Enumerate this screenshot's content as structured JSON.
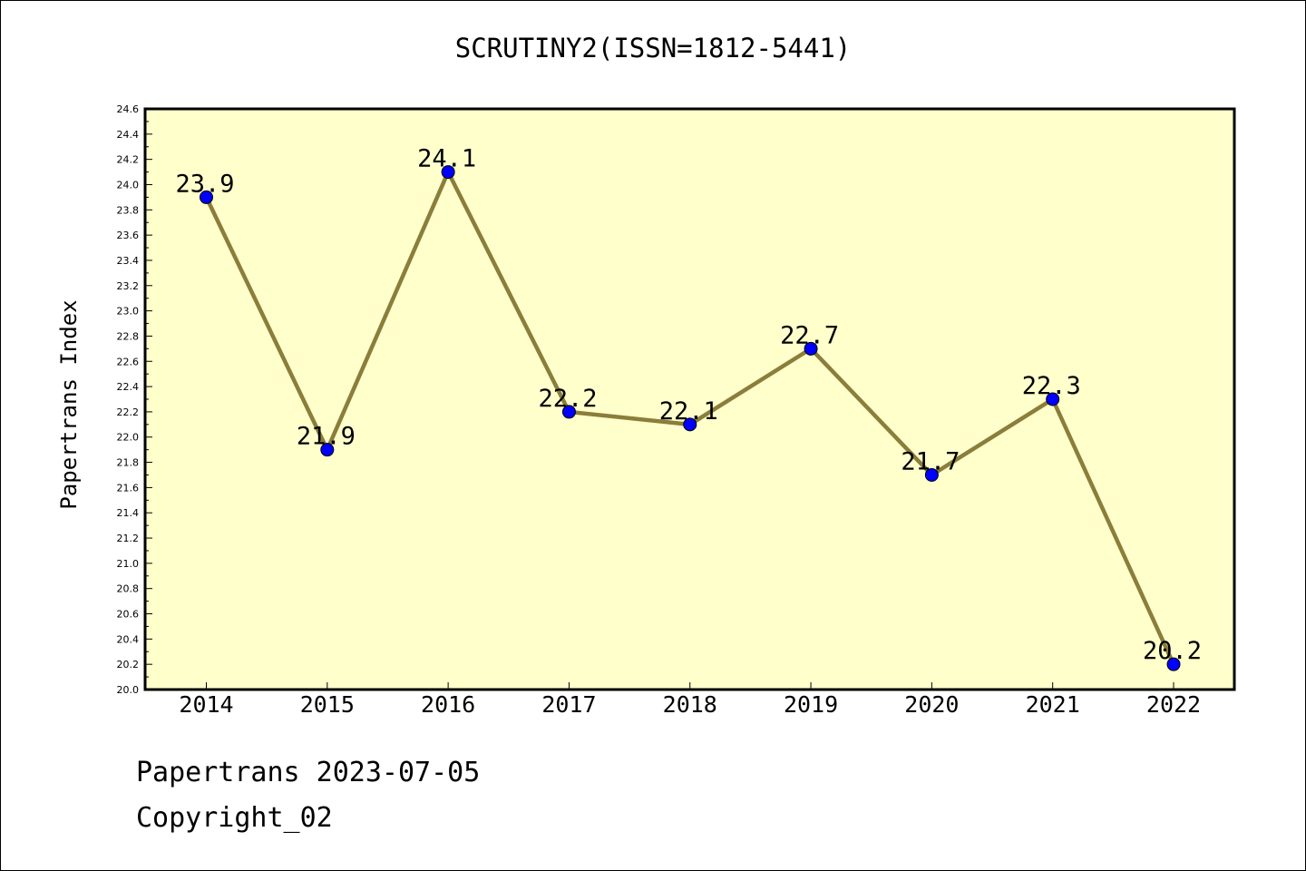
{
  "header": {
    "title": "SCRUTINY2(ISSN=1812-5441)"
  },
  "footer": {
    "date_line": "Papertrans 2023-07-05",
    "copyright": "Copyright_02"
  },
  "chart_data": {
    "type": "line",
    "title": "SCRUTINY2(ISSN=1812-5441)",
    "xlabel": "",
    "ylabel": "Papertrans Index",
    "categories": [
      "2014",
      "2015",
      "2016",
      "2017",
      "2018",
      "2019",
      "2020",
      "2021",
      "2022"
    ],
    "series": [
      {
        "values": [
          23.9,
          21.9,
          24.1,
          22.2,
          22.1,
          22.7,
          21.7,
          22.3,
          20.2
        ]
      }
    ],
    "data_labels": [
      "23.9",
      "21.9",
      "24.1",
      "22.2",
      "22.1",
      "22.7",
      "21.7",
      "22.3",
      "20.2"
    ],
    "ylim": [
      20.0,
      24.6
    ],
    "yticks": [
      "20.0",
      "20.2",
      "20.4",
      "20.6",
      "20.8",
      "21.0",
      "21.2",
      "21.4",
      "21.6",
      "21.8",
      "22.0",
      "22.2",
      "22.4",
      "22.6",
      "22.8",
      "23.0",
      "23.2",
      "23.4",
      "23.6",
      "23.8",
      "24.0",
      "24.2",
      "24.4",
      "24.6"
    ],
    "grid": false,
    "legend": "none",
    "colors": {
      "plot_background": "#ffffcc",
      "line": "#8b7d3a",
      "marker": "#0000ff"
    }
  }
}
